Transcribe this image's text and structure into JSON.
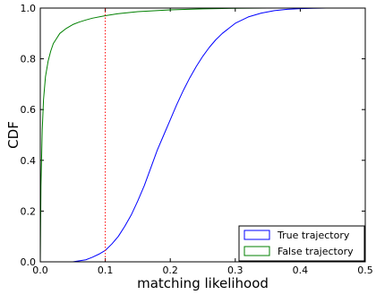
{
  "chart_data": {
    "type": "line",
    "xlabel": "matching likelihood",
    "ylabel": "CDF",
    "xlim": [
      0.0,
      0.5
    ],
    "ylim": [
      0.0,
      1.0
    ],
    "xticks": [
      "0.0",
      "0.1",
      "0.2",
      "0.3",
      "0.4",
      "0.5"
    ],
    "yticks": [
      "0.0",
      "0.2",
      "0.4",
      "0.6",
      "0.8",
      "1.0"
    ],
    "grid": false,
    "legend_position": "bottom-right",
    "series": [
      {
        "name": "True trajectory",
        "color": "#0000ff",
        "x": [
          0.0,
          0.05,
          0.07,
          0.08,
          0.09,
          0.1,
          0.11,
          0.12,
          0.13,
          0.14,
          0.15,
          0.16,
          0.17,
          0.18,
          0.19,
          0.2,
          0.21,
          0.22,
          0.23,
          0.24,
          0.25,
          0.26,
          0.27,
          0.28,
          0.29,
          0.3,
          0.32,
          0.34,
          0.36,
          0.38,
          0.4,
          0.42,
          0.44,
          0.46,
          0.5
        ],
        "y": [
          0.0,
          0.0,
          0.008,
          0.018,
          0.03,
          0.045,
          0.07,
          0.1,
          0.14,
          0.185,
          0.24,
          0.3,
          0.37,
          0.44,
          0.5,
          0.56,
          0.62,
          0.675,
          0.725,
          0.77,
          0.81,
          0.845,
          0.875,
          0.9,
          0.92,
          0.94,
          0.965,
          0.98,
          0.99,
          0.995,
          0.998,
          0.999,
          1.0,
          1.0,
          1.0
        ]
      },
      {
        "name": "False trajectory",
        "color": "#008000",
        "x": [
          0.0,
          0.001,
          0.003,
          0.005,
          0.008,
          0.012,
          0.016,
          0.02,
          0.025,
          0.03,
          0.04,
          0.05,
          0.06,
          0.07,
          0.08,
          0.1,
          0.12,
          0.15,
          0.2,
          0.25,
          0.3,
          0.35,
          0.4,
          0.5
        ],
        "y": [
          0.0,
          0.3,
          0.52,
          0.64,
          0.73,
          0.79,
          0.83,
          0.86,
          0.88,
          0.9,
          0.92,
          0.935,
          0.945,
          0.953,
          0.96,
          0.97,
          0.978,
          0.986,
          0.993,
          0.997,
          0.999,
          1.0,
          1.0,
          1.0
        ]
      }
    ],
    "reference_line": {
      "x": 0.1,
      "color": "#ff0000",
      "style": "dotted"
    }
  }
}
